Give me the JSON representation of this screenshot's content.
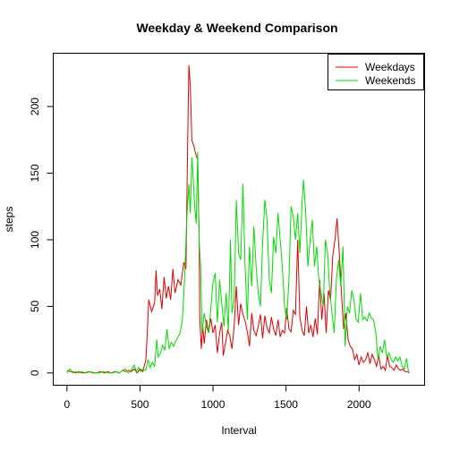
{
  "chart_data": {
    "type": "line",
    "title": "Weekday & Weekend Comparison",
    "xlabel": "Interval",
    "ylabel": "steps",
    "xlim": [
      -94,
      2449
    ],
    "ylim": [
      -9.2,
      240
    ],
    "x_ticks": [
      0,
      500,
      1000,
      1500,
      2000
    ],
    "y_ticks": [
      0,
      50,
      100,
      150,
      200
    ],
    "legend_position": "top-right",
    "series": [
      {
        "name": "Weekdays",
        "color": "#dd0000",
        "points": [
          [
            0,
            2
          ],
          [
            20,
            1
          ],
          [
            40,
            1
          ],
          [
            60,
            0
          ],
          [
            80,
            1
          ],
          [
            100,
            0
          ],
          [
            120,
            0
          ],
          [
            150,
            1
          ],
          [
            180,
            0
          ],
          [
            200,
            0
          ],
          [
            230,
            1
          ],
          [
            260,
            0
          ],
          [
            280,
            1
          ],
          [
            300,
            0
          ],
          [
            330,
            1
          ],
          [
            360,
            0
          ],
          [
            380,
            2
          ],
          [
            400,
            1
          ],
          [
            420,
            2
          ],
          [
            440,
            1
          ],
          [
            460,
            3
          ],
          [
            480,
            0
          ],
          [
            500,
            3
          ],
          [
            520,
            1
          ],
          [
            540,
            10
          ],
          [
            550,
            30
          ],
          [
            560,
            55
          ],
          [
            580,
            46
          ],
          [
            600,
            53
          ],
          [
            610,
            77
          ],
          [
            620,
            58
          ],
          [
            635,
            63
          ],
          [
            650,
            48
          ],
          [
            665,
            72
          ],
          [
            680,
            56
          ],
          [
            695,
            65
          ],
          [
            710,
            55
          ],
          [
            725,
            78
          ],
          [
            740,
            60
          ],
          [
            760,
            70
          ],
          [
            780,
            66
          ],
          [
            800,
            83
          ],
          [
            815,
            78
          ],
          [
            830,
            200
          ],
          [
            835,
            231
          ],
          [
            845,
            215
          ],
          [
            855,
            175
          ],
          [
            870,
            170
          ],
          [
            880,
            165
          ],
          [
            895,
            160
          ],
          [
            905,
            105
          ],
          [
            910,
            40
          ],
          [
            920,
            18
          ],
          [
            930,
            35
          ],
          [
            940,
            22
          ],
          [
            955,
            40
          ],
          [
            970,
            30
          ],
          [
            985,
            41
          ],
          [
            1000,
            30
          ],
          [
            1015,
            36
          ],
          [
            1030,
            15
          ],
          [
            1045,
            30
          ],
          [
            1060,
            38
          ],
          [
            1070,
            13
          ],
          [
            1085,
            22
          ],
          [
            1100,
            32
          ],
          [
            1115,
            28
          ],
          [
            1130,
            18
          ],
          [
            1145,
            35
          ],
          [
            1160,
            65
          ],
          [
            1175,
            36
          ],
          [
            1190,
            52
          ],
          [
            1205,
            44
          ],
          [
            1220,
            39
          ],
          [
            1235,
            31
          ],
          [
            1250,
            20
          ],
          [
            1265,
            45
          ],
          [
            1280,
            32
          ],
          [
            1295,
            28
          ],
          [
            1310,
            35
          ],
          [
            1325,
            44
          ],
          [
            1340,
            26
          ],
          [
            1355,
            43
          ],
          [
            1370,
            34
          ],
          [
            1385,
            30
          ],
          [
            1400,
            42
          ],
          [
            1415,
            33
          ],
          [
            1430,
            28
          ],
          [
            1445,
            40
          ],
          [
            1460,
            27
          ],
          [
            1475,
            32
          ],
          [
            1490,
            30
          ],
          [
            1505,
            49
          ],
          [
            1520,
            33
          ],
          [
            1535,
            31
          ],
          [
            1550,
            47
          ],
          [
            1565,
            44
          ],
          [
            1580,
            100
          ],
          [
            1595,
            42
          ],
          [
            1610,
            32
          ],
          [
            1625,
            28
          ],
          [
            1640,
            50
          ],
          [
            1655,
            30
          ],
          [
            1670,
            36
          ],
          [
            1685,
            27
          ],
          [
            1700,
            41
          ],
          [
            1715,
            29
          ],
          [
            1730,
            70
          ],
          [
            1745,
            40
          ],
          [
            1760,
            60
          ],
          [
            1775,
            30
          ],
          [
            1790,
            62
          ],
          [
            1805,
            55
          ],
          [
            1820,
            88
          ],
          [
            1835,
            100
          ],
          [
            1850,
            116
          ],
          [
            1865,
            90
          ],
          [
            1880,
            60
          ],
          [
            1895,
            33
          ],
          [
            1910,
            45
          ],
          [
            1925,
            25
          ],
          [
            1940,
            20
          ],
          [
            1955,
            18
          ],
          [
            1970,
            10
          ],
          [
            1985,
            14
          ],
          [
            2000,
            6
          ],
          [
            2015,
            12
          ],
          [
            2030,
            8
          ],
          [
            2045,
            10
          ],
          [
            2060,
            15
          ],
          [
            2075,
            7
          ],
          [
            2090,
            14
          ],
          [
            2105,
            10
          ],
          [
            2120,
            5
          ],
          [
            2135,
            13
          ],
          [
            2150,
            3
          ],
          [
            2165,
            5
          ],
          [
            2180,
            2
          ],
          [
            2195,
            13
          ],
          [
            2210,
            5
          ],
          [
            2225,
            4
          ],
          [
            2240,
            2
          ],
          [
            2255,
            6
          ],
          [
            2270,
            3
          ],
          [
            2285,
            2
          ],
          [
            2300,
            3
          ],
          [
            2315,
            1
          ],
          [
            2330,
            1
          ],
          [
            2345,
            0
          ]
        ]
      },
      {
        "name": "Weekends",
        "color": "#00dd00",
        "points": [
          [
            0,
            0
          ],
          [
            20,
            3
          ],
          [
            40,
            0
          ],
          [
            60,
            1
          ],
          [
            80,
            0
          ],
          [
            100,
            1
          ],
          [
            130,
            0
          ],
          [
            160,
            1
          ],
          [
            190,
            0
          ],
          [
            220,
            0
          ],
          [
            250,
            1
          ],
          [
            280,
            0
          ],
          [
            310,
            0
          ],
          [
            340,
            1
          ],
          [
            360,
            0
          ],
          [
            380,
            2
          ],
          [
            400,
            3
          ],
          [
            420,
            0
          ],
          [
            440,
            2
          ],
          [
            460,
            6
          ],
          [
            475,
            1
          ],
          [
            490,
            4
          ],
          [
            505,
            1
          ],
          [
            520,
            3
          ],
          [
            540,
            2
          ],
          [
            555,
            10
          ],
          [
            570,
            4
          ],
          [
            585,
            8
          ],
          [
            600,
            5
          ],
          [
            615,
            25
          ],
          [
            625,
            12
          ],
          [
            640,
            15
          ],
          [
            655,
            21
          ],
          [
            670,
            17
          ],
          [
            685,
            33
          ],
          [
            700,
            18
          ],
          [
            715,
            23
          ],
          [
            730,
            20
          ],
          [
            745,
            24
          ],
          [
            760,
            27
          ],
          [
            775,
            30
          ],
          [
            790,
            40
          ],
          [
            805,
            70
          ],
          [
            820,
            115
          ],
          [
            835,
            142
          ],
          [
            845,
            120
          ],
          [
            855,
            162
          ],
          [
            865,
            145
          ],
          [
            875,
            125
          ],
          [
            885,
            112
          ],
          [
            895,
            166
          ],
          [
            905,
            100
          ],
          [
            915,
            80
          ],
          [
            925,
            30
          ],
          [
            940,
            45
          ],
          [
            955,
            35
          ],
          [
            970,
            30
          ],
          [
            985,
            48
          ],
          [
            1000,
            68
          ],
          [
            1015,
            75
          ],
          [
            1030,
            38
          ],
          [
            1045,
            70
          ],
          [
            1060,
            52
          ],
          [
            1075,
            35
          ],
          [
            1090,
            60
          ],
          [
            1105,
            32
          ],
          [
            1120,
            100
          ],
          [
            1130,
            45
          ],
          [
            1145,
            55
          ],
          [
            1160,
            130
          ],
          [
            1175,
            90
          ],
          [
            1190,
            85
          ],
          [
            1205,
            142
          ],
          [
            1220,
            80
          ],
          [
            1235,
            40
          ],
          [
            1250,
            95
          ],
          [
            1265,
            65
          ],
          [
            1280,
            110
          ],
          [
            1295,
            80
          ],
          [
            1310,
            60
          ],
          [
            1325,
            50
          ],
          [
            1340,
            98
          ],
          [
            1355,
            130
          ],
          [
            1370,
            115
          ],
          [
            1385,
            70
          ],
          [
            1400,
            60
          ],
          [
            1415,
            102
          ],
          [
            1430,
            90
          ],
          [
            1445,
            120
          ],
          [
            1460,
            100
          ],
          [
            1475,
            80
          ],
          [
            1490,
            50
          ],
          [
            1505,
            40
          ],
          [
            1520,
            70
          ],
          [
            1535,
            125
          ],
          [
            1550,
            117
          ],
          [
            1565,
            100
          ],
          [
            1580,
            120
          ],
          [
            1595,
            90
          ],
          [
            1610,
            128
          ],
          [
            1620,
            145
          ],
          [
            1635,
            120
          ],
          [
            1650,
            80
          ],
          [
            1665,
            100
          ],
          [
            1680,
            115
          ],
          [
            1695,
            80
          ],
          [
            1710,
            95
          ],
          [
            1725,
            70
          ],
          [
            1740,
            60
          ],
          [
            1755,
            50
          ],
          [
            1770,
            100
          ],
          [
            1785,
            90
          ],
          [
            1800,
            60
          ],
          [
            1815,
            45
          ],
          [
            1830,
            30
          ],
          [
            1845,
            70
          ],
          [
            1860,
            85
          ],
          [
            1875,
            65
          ],
          [
            1890,
            95
          ],
          [
            1905,
            20
          ],
          [
            1920,
            50
          ],
          [
            1935,
            45
          ],
          [
            1950,
            62
          ],
          [
            1965,
            55
          ],
          [
            1980,
            40
          ],
          [
            1995,
            38
          ],
          [
            2010,
            60
          ],
          [
            2025,
            40
          ],
          [
            2040,
            42
          ],
          [
            2055,
            39
          ],
          [
            2070,
            45
          ],
          [
            2085,
            41
          ],
          [
            2100,
            40
          ],
          [
            2115,
            30
          ],
          [
            2130,
            10
          ],
          [
            2145,
            20
          ],
          [
            2160,
            15
          ],
          [
            2175,
            25
          ],
          [
            2190,
            12
          ],
          [
            2205,
            15
          ],
          [
            2220,
            10
          ],
          [
            2235,
            8
          ],
          [
            2250,
            12
          ],
          [
            2265,
            9
          ],
          [
            2280,
            12
          ],
          [
            2295,
            5
          ],
          [
            2310,
            3
          ],
          [
            2325,
            11
          ],
          [
            2340,
            0
          ]
        ]
      }
    ]
  }
}
